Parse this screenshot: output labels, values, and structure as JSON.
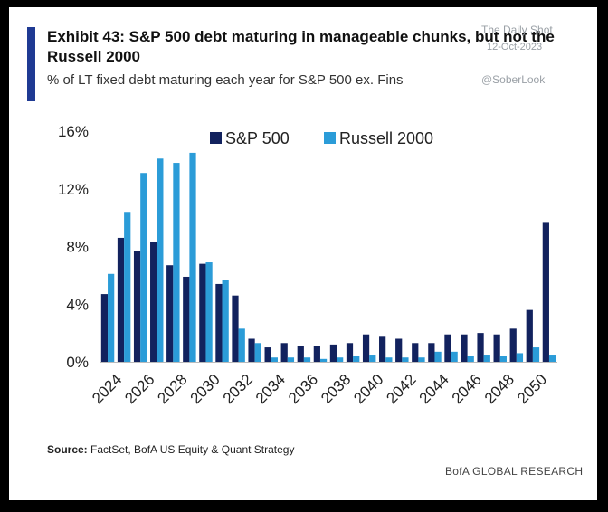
{
  "header": {
    "title": "Exhibit 43: S&P 500 debt maturing in manageable chunks, but not the Russell 2000",
    "subtitle": "% of LT fixed debt maturing each year for S&P 500 ex. Fins"
  },
  "watermark": {
    "line1": "The Daily Shot",
    "date": "12-Oct-2023",
    "handle": "@SoberLook"
  },
  "footer": {
    "source_label": "Source:",
    "source_text": "FactSet, BofA US Equity & Quant Strategy",
    "brand": "BofA GLOBAL RESEARCH"
  },
  "colors": {
    "sp500": "#12225e",
    "russell": "#2b9cd8",
    "accent": "#1f3a93"
  },
  "chart_data": {
    "type": "bar",
    "title": "Exhibit 43: S&P 500 debt maturing in manageable chunks, but not the Russell 2000",
    "xlabel": "",
    "ylabel": "",
    "ylim": [
      0,
      16
    ],
    "yticks": [
      "0%",
      "4%",
      "8%",
      "12%",
      "16%"
    ],
    "ytick_values": [
      0,
      4,
      8,
      12,
      16
    ],
    "x_tick_labels": [
      "2024",
      "2026",
      "2028",
      "2030",
      "2032",
      "2034",
      "2036",
      "2038",
      "2040",
      "2042",
      "2044",
      "2046",
      "2048",
      "2050"
    ],
    "categories": [
      "2024",
      "2025",
      "2026",
      "2027",
      "2028",
      "2029",
      "2030",
      "2031",
      "2032",
      "2033",
      "2034",
      "2035",
      "2036",
      "2037",
      "2038",
      "2039",
      "2040",
      "2041",
      "2042",
      "2043",
      "2044",
      "2045",
      "2046",
      "2047",
      "2048",
      "2049",
      "2050",
      "2051"
    ],
    "legend": [
      "S&P 500",
      "Russell 2000"
    ],
    "series": [
      {
        "name": "S&P 500",
        "values": [
          4.7,
          8.6,
          7.7,
          8.3,
          6.7,
          5.9,
          6.8,
          5.4,
          4.6,
          1.6,
          1.0,
          1.3,
          1.1,
          1.1,
          1.2,
          1.3,
          1.9,
          1.8,
          1.6,
          1.3,
          1.3,
          1.9,
          1.9,
          2.0,
          1.9,
          2.3,
          3.6,
          9.7
        ]
      },
      {
        "name": "Russell 2000",
        "values": [
          6.1,
          10.4,
          13.1,
          14.1,
          13.8,
          14.5,
          6.9,
          5.7,
          2.3,
          1.3,
          0.3,
          0.3,
          0.3,
          0.2,
          0.3,
          0.4,
          0.5,
          0.3,
          0.3,
          0.3,
          0.7,
          0.7,
          0.4,
          0.5,
          0.4,
          0.6,
          1.0,
          0.5
        ]
      }
    ]
  }
}
